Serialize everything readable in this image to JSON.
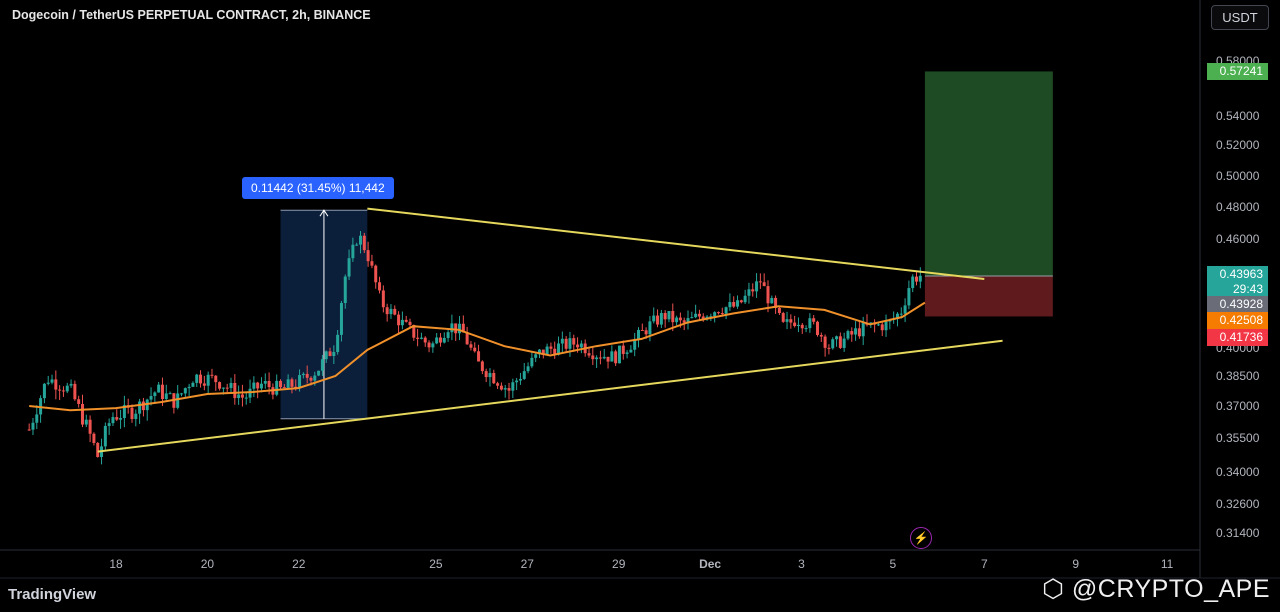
{
  "header": {
    "title": "Dogecoin / TetherUS PERPETUAL CONTRACT, 2h, BINANCE",
    "currency_button": "USDT"
  },
  "measure_label": "0.11442 (31.45%) 11,442",
  "price_labels": {
    "target": "0.57241",
    "last": "0.43963",
    "countdown": "29:43",
    "gray": "0.43928",
    "ma": "0.42508",
    "stop": "0.41736"
  },
  "footer": {
    "logo": "TradingView",
    "watermark": "@CRYPTO_APE"
  },
  "colors": {
    "up": "#26a69a",
    "down": "#ef5350",
    "trendline": "#e5d85c",
    "ma": "#f0902a",
    "target_zone": "#1e4b24",
    "stop_zone": "#5f1a1d",
    "measure_box": "#0b1e3a"
  },
  "chart_data": {
    "type": "candlestick",
    "title": "Dogecoin / TetherUS PERPETUAL CONTRACT, 2h, BINANCE",
    "y_ticks": [
      {
        "value": 0.58,
        "label": "0.58000"
      },
      {
        "value": 0.54,
        "label": "0.54000"
      },
      {
        "value": 0.52,
        "label": "0.52000"
      },
      {
        "value": 0.5,
        "label": "0.50000"
      },
      {
        "value": 0.48,
        "label": "0.48000"
      },
      {
        "value": 0.46,
        "label": "0.46000"
      },
      {
        "value": 0.4,
        "label": "0.40000"
      },
      {
        "value": 0.385,
        "label": "0.38500"
      },
      {
        "value": 0.37,
        "label": "0.37000"
      },
      {
        "value": 0.355,
        "label": "0.35500"
      },
      {
        "value": 0.34,
        "label": "0.34000"
      },
      {
        "value": 0.326,
        "label": "0.32600"
      },
      {
        "value": 0.314,
        "label": "0.31400"
      }
    ],
    "x_ticks": [
      {
        "day": 18,
        "label": "18"
      },
      {
        "day": 20,
        "label": "20"
      },
      {
        "day": 22,
        "label": "22"
      },
      {
        "day": 25,
        "label": "25"
      },
      {
        "day": 27,
        "label": "27"
      },
      {
        "day": 29,
        "label": "29"
      },
      {
        "day": 31,
        "label": "Dec"
      },
      {
        "day": 33,
        "label": "3"
      },
      {
        "day": 35,
        "label": "5"
      },
      {
        "day": 37,
        "label": "7"
      },
      {
        "day": 39,
        "label": "9"
      },
      {
        "day": 41,
        "label": "11"
      }
    ],
    "x_unit": "day (Nov 18 = 18, Dec 1 = 31)",
    "price_path": [
      [
        16.1,
        0.359
      ],
      [
        16.5,
        0.384
      ],
      [
        17.0,
        0.378
      ],
      [
        17.4,
        0.358
      ],
      [
        17.6,
        0.347
      ],
      [
        17.9,
        0.365
      ],
      [
        18.4,
        0.368
      ],
      [
        18.9,
        0.378
      ],
      [
        19.3,
        0.372
      ],
      [
        19.7,
        0.385
      ],
      [
        20.2,
        0.383
      ],
      [
        20.6,
        0.377
      ],
      [
        20.8,
        0.374
      ],
      [
        21.2,
        0.381
      ],
      [
        21.6,
        0.378
      ],
      [
        22.0,
        0.382
      ],
      [
        22.4,
        0.388
      ],
      [
        22.8,
        0.402
      ],
      [
        23.0,
        0.438
      ],
      [
        23.3,
        0.463
      ],
      [
        23.5,
        0.452
      ],
      [
        23.8,
        0.425
      ],
      [
        24.2,
        0.415
      ],
      [
        24.5,
        0.408
      ],
      [
        24.9,
        0.401
      ],
      [
        25.3,
        0.413
      ],
      [
        25.6,
        0.408
      ],
      [
        25.9,
        0.392
      ],
      [
        26.3,
        0.384
      ],
      [
        26.6,
        0.378
      ],
      [
        26.9,
        0.387
      ],
      [
        27.3,
        0.398
      ],
      [
        27.7,
        0.401
      ],
      [
        28.1,
        0.403
      ],
      [
        28.5,
        0.397
      ],
      [
        28.9,
        0.395
      ],
      [
        29.3,
        0.403
      ],
      [
        29.7,
        0.413
      ],
      [
        30.0,
        0.418
      ],
      [
        30.4,
        0.413
      ],
      [
        30.8,
        0.418
      ],
      [
        31.2,
        0.422
      ],
      [
        31.6,
        0.423
      ],
      [
        32.1,
        0.437
      ],
      [
        32.3,
        0.426
      ],
      [
        32.6,
        0.412
      ],
      [
        32.9,
        0.416
      ],
      [
        33.3,
        0.412
      ],
      [
        33.6,
        0.401
      ],
      [
        33.9,
        0.404
      ],
      [
        34.2,
        0.409
      ],
      [
        34.5,
        0.412
      ],
      [
        34.9,
        0.413
      ],
      [
        35.2,
        0.421
      ],
      [
        35.4,
        0.438
      ],
      [
        35.6,
        0.44
      ]
    ],
    "moving_average": [
      [
        16.1,
        0.37
      ],
      [
        17.0,
        0.368
      ],
      [
        18.0,
        0.369
      ],
      [
        19.0,
        0.372
      ],
      [
        20.0,
        0.376
      ],
      [
        21.0,
        0.377
      ],
      [
        22.0,
        0.379
      ],
      [
        22.8,
        0.385
      ],
      [
        23.5,
        0.399
      ],
      [
        24.5,
        0.412
      ],
      [
        25.5,
        0.41
      ],
      [
        26.5,
        0.401
      ],
      [
        27.5,
        0.396
      ],
      [
        28.5,
        0.401
      ],
      [
        29.5,
        0.405
      ],
      [
        30.5,
        0.414
      ],
      [
        31.5,
        0.419
      ],
      [
        32.5,
        0.423
      ],
      [
        33.5,
        0.421
      ],
      [
        34.5,
        0.413
      ],
      [
        35.2,
        0.417
      ],
      [
        35.7,
        0.425
      ]
    ],
    "trendline_upper": [
      [
        23.5,
        0.479
      ],
      [
        37.0,
        0.438
      ]
    ],
    "trendline_lower": [
      [
        17.6,
        0.349
      ],
      [
        37.4,
        0.404
      ]
    ],
    "measure": {
      "x_start": 21.6,
      "x_end": 23.5,
      "y_low": 0.364,
      "y_high": 0.478,
      "label": "0.11442 (31.45%) 11,442"
    },
    "position": {
      "x_start": 35.7,
      "x_end": 38.5,
      "entry": 0.43963,
      "target": 0.57241,
      "stop": 0.41736
    },
    "last_price": 0.43963
  }
}
